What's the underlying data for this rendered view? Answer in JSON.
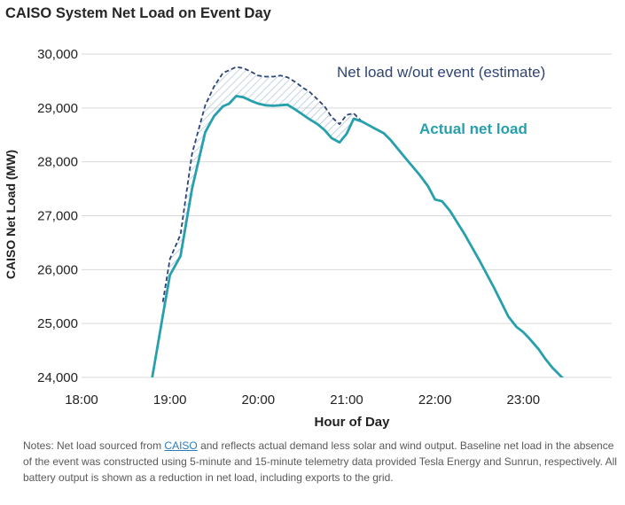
{
  "title": "CAISO System Net Load on Event Day",
  "notes": {
    "before_link": "Notes: Net load sourced from ",
    "link_text": "CAISO",
    "after_link": " and reflects actual demand less solar and wind output. Baseline net load in the absence of the event was constructed using 5-minute and 15-minute telemetry data provided Tesla Energy and Sunrun, respectively. All battery output is shown as a reduction in net load, including exports to the grid."
  },
  "colors": {
    "actual": "#27a0ad",
    "estimate": "#2f4472",
    "gap_hatch": "#a9bfd9",
    "grid": "#d9d9d9"
  },
  "chart_data": {
    "type": "line",
    "title": "CAISO System Net Load on Event Day",
    "xlabel": "Hour of Day",
    "ylabel": "CAISO Net Load (MW)",
    "xlim": [
      18,
      24
    ],
    "ylim": [
      24000,
      30000
    ],
    "x_ticks": [
      18,
      19,
      20,
      21,
      22,
      23
    ],
    "x_tick_labels": [
      "18:00",
      "19:00",
      "20:00",
      "21:00",
      "22:00",
      "23:00"
    ],
    "y_ticks": [
      24000,
      25000,
      26000,
      27000,
      28000,
      29000,
      30000
    ],
    "y_tick_labels": [
      "24,000",
      "25,000",
      "26,000",
      "27,000",
      "28,000",
      "29,000",
      "30,000"
    ],
    "grid": "horizontal",
    "series": [
      {
        "name": "Actual net load",
        "style": "solid",
        "x": [
          18.8,
          18.92,
          19.0,
          19.12,
          19.25,
          19.4,
          19.5,
          19.6,
          19.67,
          19.75,
          19.83,
          19.92,
          20.0,
          20.08,
          20.17,
          20.25,
          20.33,
          20.42,
          20.5,
          20.58,
          20.67,
          20.75,
          20.83,
          20.92,
          21.0,
          21.08,
          21.17,
          21.25,
          21.33,
          21.42,
          21.5,
          21.67,
          21.83,
          21.92,
          22.0,
          22.08,
          22.17,
          22.33,
          22.5,
          22.67,
          22.83,
          22.92,
          23.0,
          23.08,
          23.17,
          23.25,
          23.33,
          23.42,
          23.5
        ],
        "y": [
          24000,
          25150,
          25900,
          26250,
          27500,
          28550,
          28850,
          29030,
          29080,
          29220,
          29200,
          29130,
          29080,
          29050,
          29040,
          29050,
          29060,
          28970,
          28880,
          28790,
          28700,
          28590,
          28440,
          28360,
          28520,
          28800,
          28750,
          28680,
          28610,
          28530,
          28400,
          28060,
          27750,
          27550,
          27300,
          27270,
          27090,
          26670,
          26180,
          25660,
          25130,
          24940,
          24840,
          24700,
          24530,
          24340,
          24180,
          24030,
          23900
        ]
      },
      {
        "name": "Net load w/out event (estimate)",
        "style": "dashed",
        "x": [
          18.92,
          19.0,
          19.12,
          19.25,
          19.4,
          19.5,
          19.6,
          19.67,
          19.75,
          19.83,
          19.92,
          20.0,
          20.08,
          20.17,
          20.25,
          20.33,
          20.42,
          20.5,
          20.58,
          20.67,
          20.75,
          20.83,
          20.92,
          21.0,
          21.08,
          21.17,
          21.25
        ],
        "y": [
          25400,
          26200,
          26650,
          28150,
          29050,
          29400,
          29650,
          29700,
          29760,
          29740,
          29670,
          29600,
          29580,
          29580,
          29600,
          29570,
          29480,
          29380,
          29300,
          29160,
          29030,
          28830,
          28700,
          28870,
          28900,
          28750,
          28680
        ]
      }
    ],
    "annotations": [
      {
        "text": "Net load w/out event (estimate)",
        "series": "Net load w/out event (estimate)"
      },
      {
        "text": "Actual net load",
        "series": "Actual net load"
      }
    ],
    "shaded_region": "between estimate and actual"
  }
}
